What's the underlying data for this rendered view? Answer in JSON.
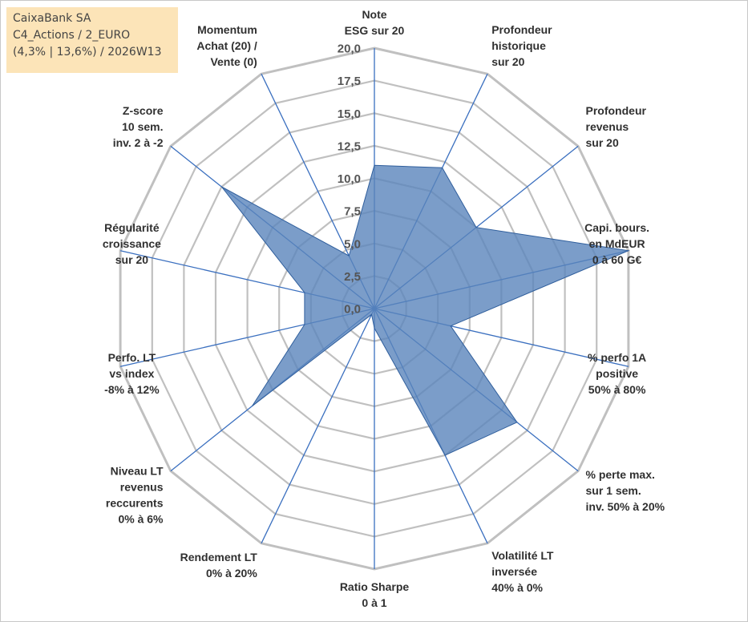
{
  "info_box": {
    "line1": "CaixaBank SA",
    "line2": "C4_Actions / 2_EURO",
    "line3": "(4,3% | 13,6%) / 2026W13"
  },
  "colors": {
    "fill": "#5a84bb",
    "stroke": "#2f5e9c",
    "grid": "#c0c0c0",
    "spoke": "#3a6fbf",
    "info_bg": "#fce4b8"
  },
  "chart_data": {
    "type": "radar",
    "title": "",
    "rmin": 0,
    "rmax": 20,
    "ticks": [
      "0,0",
      "2,5",
      "5,0",
      "7,5",
      "10,0",
      "12,5",
      "15,0",
      "17,5",
      "20,0"
    ],
    "axes": [
      [
        "Note",
        "ESG sur 20"
      ],
      [
        "Profondeur",
        "historique",
        "sur 20"
      ],
      [
        "Profondeur",
        "revenus",
        "sur 20"
      ],
      [
        "Capi. bours.",
        "en MdEUR",
        "0 à 60 G€"
      ],
      [
        "% perfo 1A",
        "positive",
        "50% à 80%"
      ],
      [
        "% perte max.",
        "sur 1 sem.",
        "inv. 50% à 20%"
      ],
      [
        "Volatilité LT",
        "inversée",
        "40% à 0%"
      ],
      [
        "Ratio Sharpe",
        "0 à 1"
      ],
      [
        "Rendement LT",
        "0% à 20%"
      ],
      [
        "Niveau LT",
        "revenus",
        "reccurents",
        "0% à 6%"
      ],
      [
        "Perfo. LT",
        "vs index",
        "-8% à 12%"
      ],
      [
        "Régularité",
        "croissance",
        "sur 20"
      ],
      [
        "Z-score",
        "10 sem.",
        "inv. 2 à -2"
      ],
      [
        "Momentum",
        "Achat (20) /",
        "Vente (0)"
      ]
    ],
    "series": [
      {
        "values": [
          11.0,
          12.0,
          10.0,
          20.0,
          6.0,
          14.0,
          12.5,
          1.5,
          0.5,
          12.0,
          5.5,
          5.5,
          15.0,
          4.5
        ]
      }
    ]
  }
}
